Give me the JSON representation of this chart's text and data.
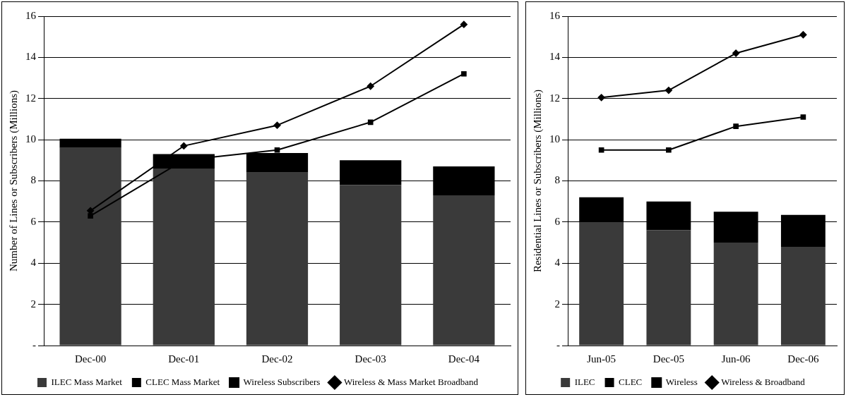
{
  "chart_data": [
    {
      "type": "bar",
      "stacked": true,
      "ylabel": "Number of Lines or Subscribers (Millions)",
      "categories": [
        "Dec-00",
        "Dec-01",
        "Dec-02",
        "Dec-03",
        "Dec-04"
      ],
      "ylim": [
        0,
        16
      ],
      "yticks": [
        {
          "value": 0,
          "label": "-"
        },
        2,
        4,
        6,
        8,
        10,
        12,
        14,
        16
      ],
      "grid": "y",
      "legend": "bottom",
      "series": [
        {
          "name": "ILEC Mass Market",
          "color": "#3a3a3a",
          "values": [
            9.6,
            8.6,
            8.4,
            7.8,
            7.3
          ]
        },
        {
          "name": "CLEC Mass Market",
          "color": "#000000",
          "values": [
            0.45,
            0.7,
            0.95,
            1.2,
            1.4
          ]
        },
        {
          "name": "Wireless Subscribers",
          "type": "line",
          "marker": "square",
          "color": "#000000",
          "values": [
            6.3,
            9.0,
            9.5,
            10.85,
            13.2
          ]
        },
        {
          "name": "Wireless & Mass Market Broadband",
          "type": "line",
          "marker": "diamond",
          "color": "#000000",
          "values": [
            6.55,
            9.7,
            10.7,
            12.6,
            15.6
          ]
        }
      ]
    },
    {
      "type": "bar",
      "stacked": true,
      "ylabel": "Residential Lines or Subscribers (Millions)",
      "categories": [
        "Jun-05",
        "Dec-05",
        "Jun-06",
        "Dec-06"
      ],
      "ylim": [
        0,
        16
      ],
      "yticks": [
        {
          "value": 0,
          "label": "-"
        },
        2,
        4,
        6,
        8,
        10,
        12,
        14,
        16
      ],
      "grid": "y",
      "legend": "bottom",
      "series": [
        {
          "name": "ILEC",
          "color": "#3a3a3a",
          "values": [
            6.0,
            5.6,
            5.0,
            4.8
          ]
        },
        {
          "name": "CLEC",
          "color": "#000000",
          "values": [
            1.2,
            1.4,
            1.5,
            1.55
          ]
        },
        {
          "name": "Wireless",
          "type": "line",
          "marker": "square",
          "color": "#000000",
          "values": [
            9.5,
            9.5,
            10.65,
            11.1
          ]
        },
        {
          "name": "Wireless & Broadband",
          "type": "line",
          "marker": "diamond",
          "color": "#000000",
          "values": [
            12.05,
            12.4,
            14.2,
            15.1
          ]
        }
      ]
    }
  ]
}
